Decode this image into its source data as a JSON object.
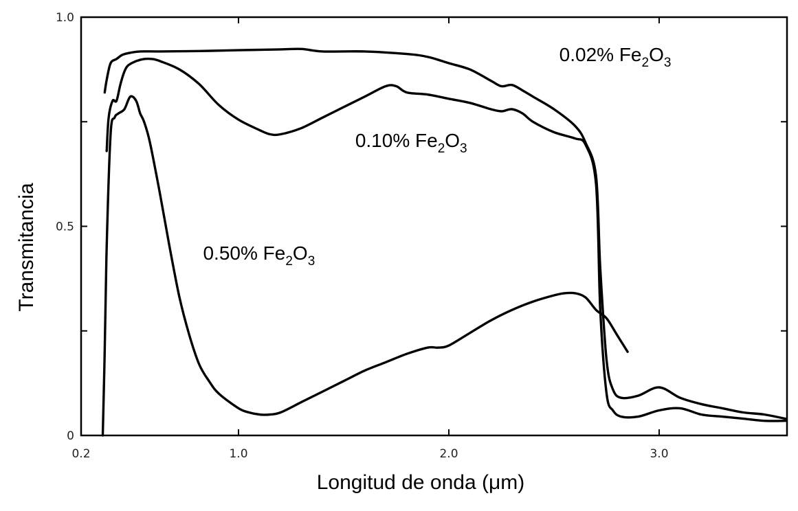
{
  "chart_data": {
    "type": "line",
    "title": "",
    "xlabel": "Longitud de onda (μm)",
    "ylabel": "Transmitancia",
    "xlim": [
      0.2,
      3.6
    ],
    "ylim": [
      0,
      1.0
    ],
    "x_ticks": [
      {
        "value": 0.2,
        "label": "0.2"
      },
      {
        "value": 1.0,
        "label": "1.0"
      },
      {
        "value": 2.0,
        "label": "2.0"
      },
      {
        "value": 3.0,
        "label": "3.0"
      }
    ],
    "y_ticks": [
      {
        "value": 0,
        "label": "0"
      },
      {
        "value": 0.25,
        "label": ""
      },
      {
        "value": 0.5,
        "label": "0.5"
      },
      {
        "value": 0.75,
        "label": ""
      },
      {
        "value": 1.0,
        "label": "1.0"
      }
    ],
    "grid": false,
    "series": [
      {
        "name": "0.02% Fe2O3",
        "label_parts": [
          "0.02% Fe",
          "2",
          "O",
          "3"
        ],
        "label_at": [
          2.525,
          0.895
        ],
        "x": [
          0.32,
          0.33,
          0.35,
          0.38,
          0.41,
          0.45,
          0.5,
          0.6,
          0.8,
          1.0,
          1.2,
          1.3,
          1.4,
          1.6,
          1.8,
          1.9,
          2.0,
          2.1,
          2.2,
          2.25,
          2.3,
          2.35,
          2.4,
          2.5,
          2.6,
          2.65,
          2.7,
          2.72,
          2.75,
          2.78,
          2.82,
          2.9,
          3.0,
          3.1,
          3.2,
          3.3,
          3.4,
          3.5,
          3.6
        ],
        "y": [
          0.82,
          0.85,
          0.89,
          0.9,
          0.91,
          0.915,
          0.918,
          0.918,
          0.919,
          0.921,
          0.923,
          0.924,
          0.918,
          0.918,
          0.912,
          0.905,
          0.89,
          0.875,
          0.848,
          0.835,
          0.838,
          0.825,
          0.81,
          0.78,
          0.74,
          0.7,
          0.62,
          0.4,
          0.18,
          0.11,
          0.09,
          0.095,
          0.115,
          0.09,
          0.075,
          0.065,
          0.055,
          0.05,
          0.04
        ]
      },
      {
        "name": "0.10% Fe2O3",
        "label_parts": [
          "0.10% Fe",
          "2",
          "O",
          "3"
        ],
        "label_at": [
          1.555,
          0.69
        ],
        "x": [
          0.33,
          0.34,
          0.36,
          0.38,
          0.4,
          0.42,
          0.44,
          0.48,
          0.52,
          0.56,
          0.6,
          0.7,
          0.8,
          0.9,
          1.0,
          1.1,
          1.15,
          1.2,
          1.3,
          1.4,
          1.5,
          1.6,
          1.7,
          1.75,
          1.8,
          1.9,
          2.0,
          2.1,
          2.2,
          2.25,
          2.3,
          2.35,
          2.4,
          2.5,
          2.6,
          2.65,
          2.7,
          2.72,
          2.75,
          2.78,
          2.82,
          2.9,
          3.0,
          3.1,
          3.2,
          3.3,
          3.4,
          3.5,
          3.6
        ],
        "y": [
          0.68,
          0.76,
          0.8,
          0.8,
          0.84,
          0.87,
          0.885,
          0.895,
          0.9,
          0.9,
          0.895,
          0.875,
          0.84,
          0.79,
          0.755,
          0.73,
          0.72,
          0.72,
          0.735,
          0.76,
          0.785,
          0.81,
          0.835,
          0.835,
          0.82,
          0.815,
          0.805,
          0.795,
          0.78,
          0.775,
          0.78,
          0.77,
          0.75,
          0.725,
          0.71,
          0.695,
          0.6,
          0.3,
          0.1,
          0.06,
          0.045,
          0.045,
          0.06,
          0.065,
          0.05,
          0.045,
          0.04,
          0.035,
          0.035
        ]
      },
      {
        "name": "0.50% Fe2O3",
        "label_parts": [
          "0.50% Fe",
          "2",
          "O",
          "3"
        ],
        "label_at": [
          0.82,
          0.42
        ],
        "x": [
          0.31,
          0.32,
          0.33,
          0.35,
          0.37,
          0.39,
          0.42,
          0.45,
          0.48,
          0.5,
          0.52,
          0.55,
          0.6,
          0.65,
          0.7,
          0.75,
          0.8,
          0.85,
          0.9,
          1.0,
          1.05,
          1.1,
          1.15,
          1.2,
          1.3,
          1.4,
          1.5,
          1.6,
          1.7,
          1.8,
          1.9,
          1.95,
          2.0,
          2.1,
          2.2,
          2.3,
          2.4,
          2.5,
          2.55,
          2.6,
          2.65,
          2.7,
          2.75,
          2.8,
          2.85
        ],
        "y": [
          0.0,
          0.2,
          0.45,
          0.72,
          0.76,
          0.77,
          0.78,
          0.81,
          0.8,
          0.77,
          0.75,
          0.7,
          0.58,
          0.45,
          0.33,
          0.24,
          0.17,
          0.13,
          0.1,
          0.065,
          0.055,
          0.05,
          0.05,
          0.055,
          0.08,
          0.105,
          0.13,
          0.155,
          0.175,
          0.195,
          0.21,
          0.21,
          0.215,
          0.245,
          0.275,
          0.3,
          0.32,
          0.335,
          0.34,
          0.34,
          0.33,
          0.3,
          0.28,
          0.24,
          0.2
        ]
      }
    ]
  }
}
